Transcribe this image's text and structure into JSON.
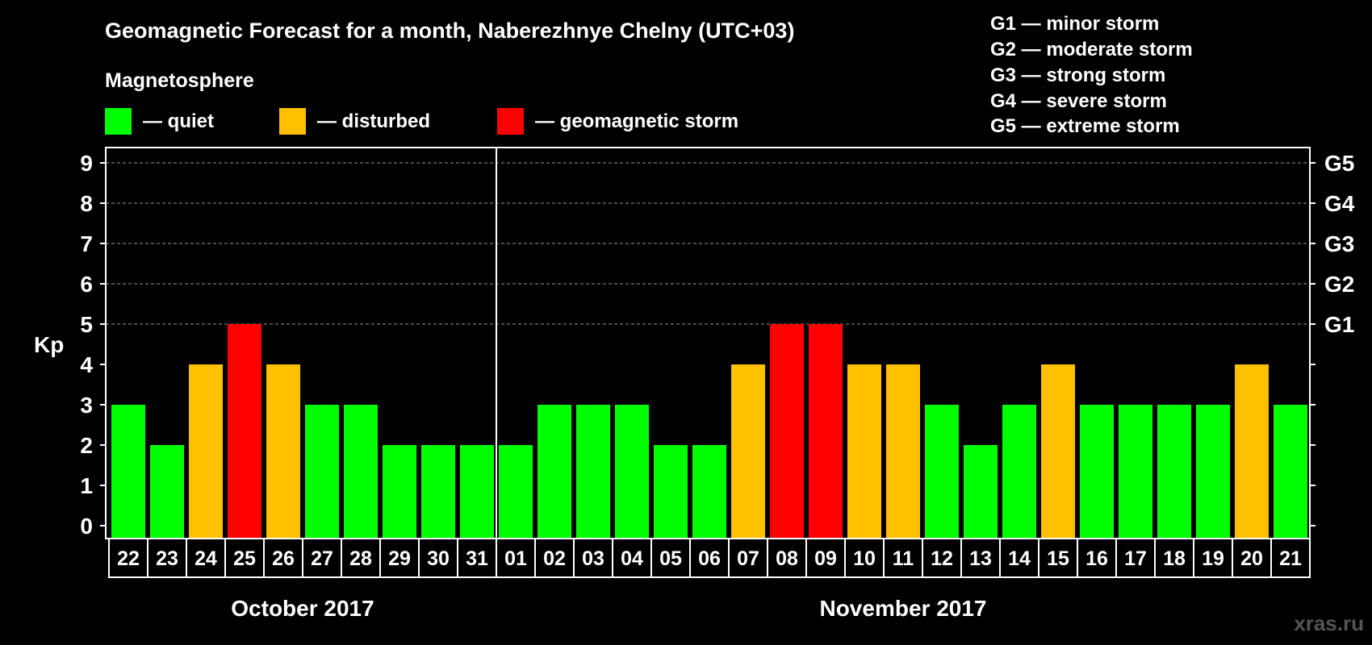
{
  "chart_data": {
    "type": "bar",
    "title": "Geomagnetic Forecast for a month, Naberezhnye Chelny (UTC+03)",
    "legend_title": "Magnetosphere",
    "legend": [
      {
        "label": "— quiet",
        "color": "#00ff00"
      },
      {
        "label": "— disturbed",
        "color": "#ffc000"
      },
      {
        "label": "— geomagnetic storm",
        "color": "#ff0000"
      }
    ],
    "g_scale_legend": [
      "G1 — minor storm",
      "G2 — moderate storm",
      "G3 — strong storm",
      "G4 — severe storm",
      "G5 — extreme storm"
    ],
    "ylabel": "Kp",
    "ylim": [
      0,
      9
    ],
    "y_ticks": [
      "0",
      "1",
      "2",
      "3",
      "4",
      "5",
      "6",
      "7",
      "8",
      "9"
    ],
    "right_ticks": [
      {
        "value": 5,
        "label": "G1"
      },
      {
        "value": 6,
        "label": "G2"
      },
      {
        "value": 7,
        "label": "G3"
      },
      {
        "value": 8,
        "label": "G4"
      },
      {
        "value": 9,
        "label": "G5"
      }
    ],
    "categories": [
      "22",
      "23",
      "24",
      "25",
      "26",
      "27",
      "28",
      "29",
      "30",
      "31",
      "01",
      "02",
      "03",
      "04",
      "05",
      "06",
      "07",
      "08",
      "09",
      "10",
      "11",
      "12",
      "13",
      "14",
      "15",
      "16",
      "17",
      "18",
      "19",
      "20",
      "21"
    ],
    "values": [
      3,
      2,
      4,
      5,
      4,
      3,
      3,
      2,
      2,
      2,
      2,
      3,
      3,
      3,
      2,
      2,
      4,
      5,
      5,
      4,
      4,
      3,
      2,
      3,
      4,
      3,
      3,
      3,
      3,
      4,
      3
    ],
    "months": [
      {
        "label": "October 2017",
        "start": 0,
        "count": 10
      },
      {
        "label": "November 2017",
        "start": 10,
        "count": 21
      }
    ],
    "grid": true,
    "thresholds": {
      "disturbed": 4,
      "storm": 5
    }
  },
  "watermark": "xras.ru"
}
